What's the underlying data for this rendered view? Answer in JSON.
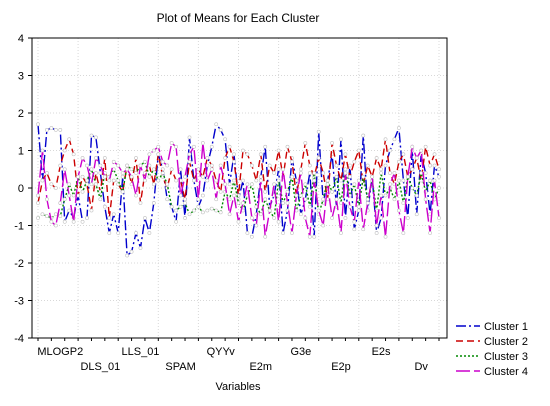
{
  "chart_data": {
    "type": "line",
    "title": "Plot of Means for Each Cluster",
    "xlabel": "Variables",
    "ylabel": "",
    "ylim": [
      -4,
      4
    ],
    "yticks": [
      -4,
      -3,
      -2,
      -1,
      0,
      1,
      2,
      3,
      4
    ],
    "grid": true,
    "legend_position": "bottom-right",
    "x_tick_labels": [
      {
        "label": "MLOGP2",
        "index": 5,
        "row": 1
      },
      {
        "label": "DLS_01",
        "index": 14,
        "row": 2
      },
      {
        "label": "LLS_01",
        "index": 23,
        "row": 1
      },
      {
        "label": "SPAM",
        "index": 32,
        "row": 2
      },
      {
        "label": "QYYv",
        "index": 41,
        "row": 1
      },
      {
        "label": "E2m",
        "index": 50,
        "row": 2
      },
      {
        "label": "G3e",
        "index": 59,
        "row": 1
      },
      {
        "label": "E2p",
        "index": 68,
        "row": 2
      },
      {
        "label": "E2s",
        "index": 77,
        "row": 1
      },
      {
        "label": "Dv",
        "index": 86,
        "row": 2
      }
    ],
    "series": [
      {
        "name": "Cluster  1",
        "color": "#0000cc",
        "dash": "10,3,2,3",
        "values": [
          1.7,
          0.2,
          1.55,
          1.6,
          1.55,
          1.55,
          -0.9,
          -0.6,
          -0.8,
          -0.2,
          -0.9,
          -0.8,
          1.4,
          1.35,
          0.4,
          -0.5,
          -1.2,
          -0.7,
          -1.2,
          0.3,
          -1.8,
          -1.7,
          -1.2,
          -1.6,
          -0.8,
          -1.2,
          -0.4,
          0.9,
          0.5,
          -0.3,
          -0.5,
          -0.9,
          0.5,
          -0.8,
          1.35,
          0.2,
          -0.5,
          -0.2,
          0.6,
          1.1,
          1.7,
          1.55,
          1.3,
          0.1,
          0.9,
          -0.3,
          0.2,
          -1.2,
          -1.3,
          -0.7,
          0.3,
          1.1,
          -0.5,
          -0.2,
          0.5,
          -1.2,
          -0.6,
          0.8,
          0.2,
          -0.7,
          -0.3,
          0.4,
          -1.3,
          1.5,
          -0.4,
          0.2,
          0.9,
          -0.5,
          1.3,
          -0.8,
          0.6,
          -1.1,
          -0.6,
          1.4,
          -0.6,
          0.3,
          -1.2,
          -0.8,
          0.6,
          1.0,
          1.3,
          1.6,
          0.2,
          -0.8,
          1.0,
          -0.7,
          0.9,
          0.4,
          -0.7,
          0.6,
          0.3
        ]
      },
      {
        "name": "Cluster  2",
        "color": "#cc0000",
        "dash": "7,4",
        "values": [
          -0.4,
          0.2,
          0.4,
          0.1,
          0.0,
          0.6,
          1.0,
          1.3,
          0.9,
          -0.2,
          0.3,
          0.1,
          -0.6,
          0.4,
          -0.1,
          0.8,
          -0.8,
          0.2,
          0.1,
          -0.1,
          0.6,
          0.1,
          0.8,
          -0.4,
          0.4,
          0.6,
          0.1,
          0.9,
          0.3,
          0.0,
          0.5,
          0.2,
          0.2,
          -0.3,
          0.7,
          0.2,
          0.5,
          0.3,
          0.8,
          0.6,
          0.2,
          -0.1,
          0.8,
          1.1,
          0.7,
          -0.2,
          1.0,
          0.9,
          0.6,
          0.2,
          0.9,
          -0.1,
          0.6,
          0.4,
          1.0,
          0.3,
          1.1,
          0.7,
          -0.2,
          0.5,
          1.2,
          0.6,
          0.3,
          0.8,
          0.4,
          -0.3,
          1.2,
          0.6,
          0.2,
          0.9,
          0.3,
          0.7,
          1.0,
          0.1,
          0.6,
          0.3,
          0.8,
          0.5,
          1.3,
          0.4,
          0.1,
          0.7,
          0.9,
          0.3,
          0.5,
          0.8,
          0.2,
          1.1,
          0.6,
          0.9,
          0.5
        ]
      },
      {
        "name": "Cluster  3",
        "color": "#008800",
        "dash": "2,2",
        "values": [
          -0.8,
          -0.7,
          -0.75,
          -0.8,
          -0.7,
          -0.75,
          -0.3,
          0.1,
          -0.2,
          0.3,
          -0.1,
          0.2,
          0.5,
          0.1,
          -0.3,
          0.4,
          0.3,
          0.5,
          0.2,
          -0.1,
          0.6,
          0.5,
          0.4,
          0.6,
          0.7,
          0.3,
          0.5,
          0.2,
          0.4,
          0.1,
          -0.5,
          -0.6,
          -0.5,
          -0.4,
          -0.7,
          -0.6,
          -0.5,
          -0.65,
          -0.6,
          -0.55,
          -0.6,
          -0.65,
          -0.1,
          -0.3,
          0.2,
          -0.4,
          -0.6,
          -0.2,
          0.1,
          -0.5,
          -0.7,
          -0.3,
          -0.6,
          -0.8,
          0.2,
          -0.4,
          -0.1,
          0.3,
          -0.6,
          -0.2,
          0.1,
          -0.5,
          0.4,
          -0.7,
          -0.3,
          0.2,
          -0.1,
          0.3,
          -0.4,
          0.5,
          -0.2,
          0.1,
          -0.5,
          0.3,
          -0.3,
          0.2,
          -0.6,
          0.4,
          -0.2,
          0.0,
          -0.3,
          0.2,
          -0.4,
          0.3,
          0.0,
          -0.2,
          0.4,
          -0.1,
          0.2,
          -0.3,
          0.0
        ]
      },
      {
        "name": "Cluster  4",
        "color": "#cc00cc",
        "dash": "14,4",
        "values": [
          -0.2,
          1.0,
          -0.3,
          -0.9,
          -1.0,
          -0.4,
          0.5,
          -0.2,
          -0.9,
          0.3,
          0.8,
          0.6,
          0.1,
          0.8,
          0.6,
          0.3,
          0.2,
          0.7,
          0.6,
          0.4,
          0.5,
          0.3,
          -0.2,
          0.6,
          0.2,
          0.9,
          1.0,
          1.1,
          0.7,
          0.6,
          1.2,
          1.1,
          -0.2,
          0.3,
          0.9,
          1.1,
          -0.3,
          1.2,
          0.2,
          0.5,
          -0.3,
          0.6,
          0.1,
          -0.7,
          -0.2,
          -0.9,
          -0.4,
          0.1,
          -0.8,
          -1.0,
          0.2,
          -1.3,
          -0.6,
          0.1,
          -0.9,
          0.5,
          -0.4,
          -1.2,
          -0.2,
          0.4,
          -0.8,
          -1.3,
          0.2,
          -0.6,
          -1.0,
          0.1,
          -0.8,
          -0.3,
          -1.2,
          0.4,
          -0.5,
          -0.9,
          0.2,
          -1.1,
          -0.4,
          0.3,
          -1.0,
          -0.2,
          -1.3,
          0.1,
          0.4,
          -0.6,
          -1.2,
          0.3,
          1.1,
          0.8,
          1.0,
          -0.3,
          -1.2,
          0.2,
          -0.8
        ]
      }
    ]
  }
}
